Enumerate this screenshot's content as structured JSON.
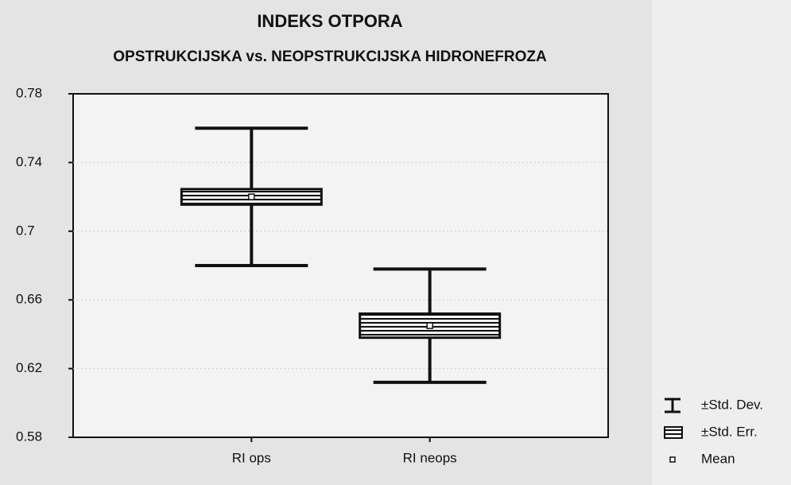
{
  "chart_data": {
    "type": "box",
    "title": "INDEKS OTPORA",
    "subtitle": "OPSTRUKCIJSKA vs. NEOPSTRUKCIJSKA HIDRONEFROZA",
    "categories": [
      "RI ops",
      "RI neops"
    ],
    "mean": [
      0.72,
      0.645
    ],
    "se": [
      0.0045,
      0.007
    ],
    "sd": [
      0.04,
      0.033
    ],
    "color": "#111111",
    "ylim": [
      0.58,
      0.78
    ],
    "yticks": [
      0.58,
      0.62,
      0.66,
      0.7,
      0.74,
      0.78
    ],
    "grid": true,
    "legend_position": "bottom-right",
    "legend": [
      "±Std. Dev.",
      "±Std. Err.",
      "Mean"
    ]
  }
}
